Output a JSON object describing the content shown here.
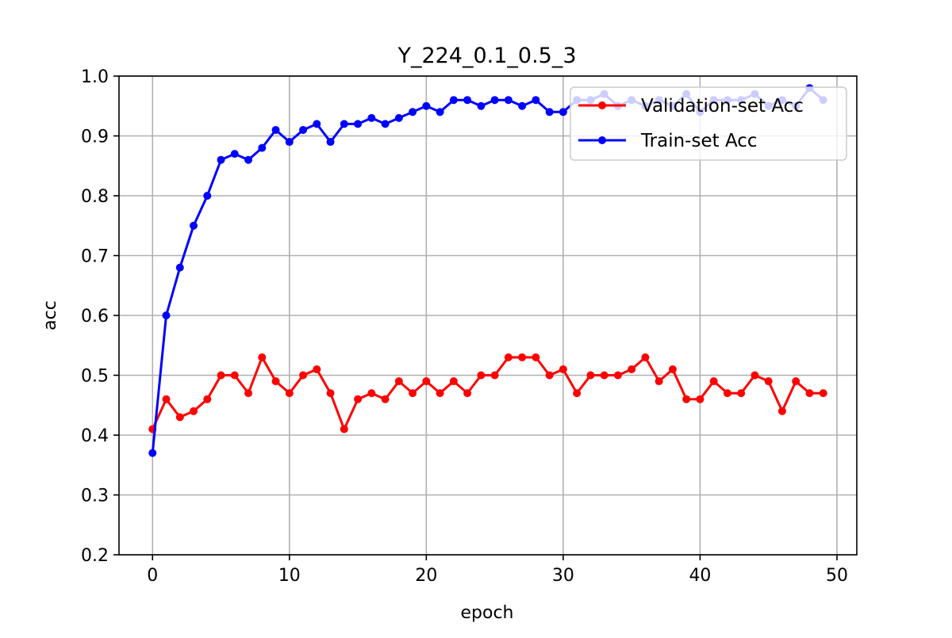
{
  "chart_data": {
    "type": "line",
    "title": "Y_224_0.1_0.5_3",
    "xlabel": "epoch",
    "ylabel": "acc",
    "xlim": [
      -2.45,
      51.45
    ],
    "ylim": [
      0.2,
      1.0
    ],
    "xticks": [
      "0",
      "10",
      "20",
      "30",
      "40",
      "50"
    ],
    "yticks": [
      "0.2",
      "0.3",
      "0.4",
      "0.5",
      "0.6",
      "0.7",
      "0.8",
      "0.9",
      "1.0"
    ],
    "grid": true,
    "legend_position": "upper right",
    "x": [
      0,
      1,
      2,
      3,
      4,
      5,
      6,
      7,
      8,
      9,
      10,
      11,
      12,
      13,
      14,
      15,
      16,
      17,
      18,
      19,
      20,
      21,
      22,
      23,
      24,
      25,
      26,
      27,
      28,
      29,
      30,
      31,
      32,
      33,
      34,
      35,
      36,
      37,
      38,
      39,
      40,
      41,
      42,
      43,
      44,
      45,
      46,
      47,
      48,
      49
    ],
    "series": [
      {
        "name": "Validation-set Acc",
        "color": "#ff0000",
        "values": [
          0.41,
          0.46,
          0.43,
          0.44,
          0.46,
          0.5,
          0.5,
          0.47,
          0.53,
          0.49,
          0.47,
          0.5,
          0.51,
          0.47,
          0.41,
          0.46,
          0.47,
          0.46,
          0.49,
          0.47,
          0.49,
          0.47,
          0.49,
          0.47,
          0.5,
          0.5,
          0.53,
          0.53,
          0.53,
          0.5,
          0.51,
          0.47,
          0.5,
          0.5,
          0.5,
          0.51,
          0.53,
          0.49,
          0.51,
          0.46,
          0.46,
          0.49,
          0.47,
          0.47,
          0.5,
          0.49,
          0.44,
          0.49,
          0.47,
          0.47
        ]
      },
      {
        "name": "Train-set Acc",
        "color": "#0000ff",
        "values": [
          0.37,
          0.6,
          0.68,
          0.75,
          0.8,
          0.86,
          0.87,
          0.86,
          0.88,
          0.91,
          0.89,
          0.91,
          0.92,
          0.89,
          0.92,
          0.92,
          0.93,
          0.92,
          0.93,
          0.94,
          0.95,
          0.94,
          0.96,
          0.96,
          0.95,
          0.96,
          0.96,
          0.95,
          0.96,
          0.94,
          0.94,
          0.96,
          0.96,
          0.97,
          0.95,
          0.96,
          0.95,
          0.96,
          0.95,
          0.97,
          0.94,
          0.96,
          0.96,
          0.96,
          0.97,
          0.95,
          0.96,
          0.95,
          0.98,
          0.96
        ]
      }
    ]
  }
}
